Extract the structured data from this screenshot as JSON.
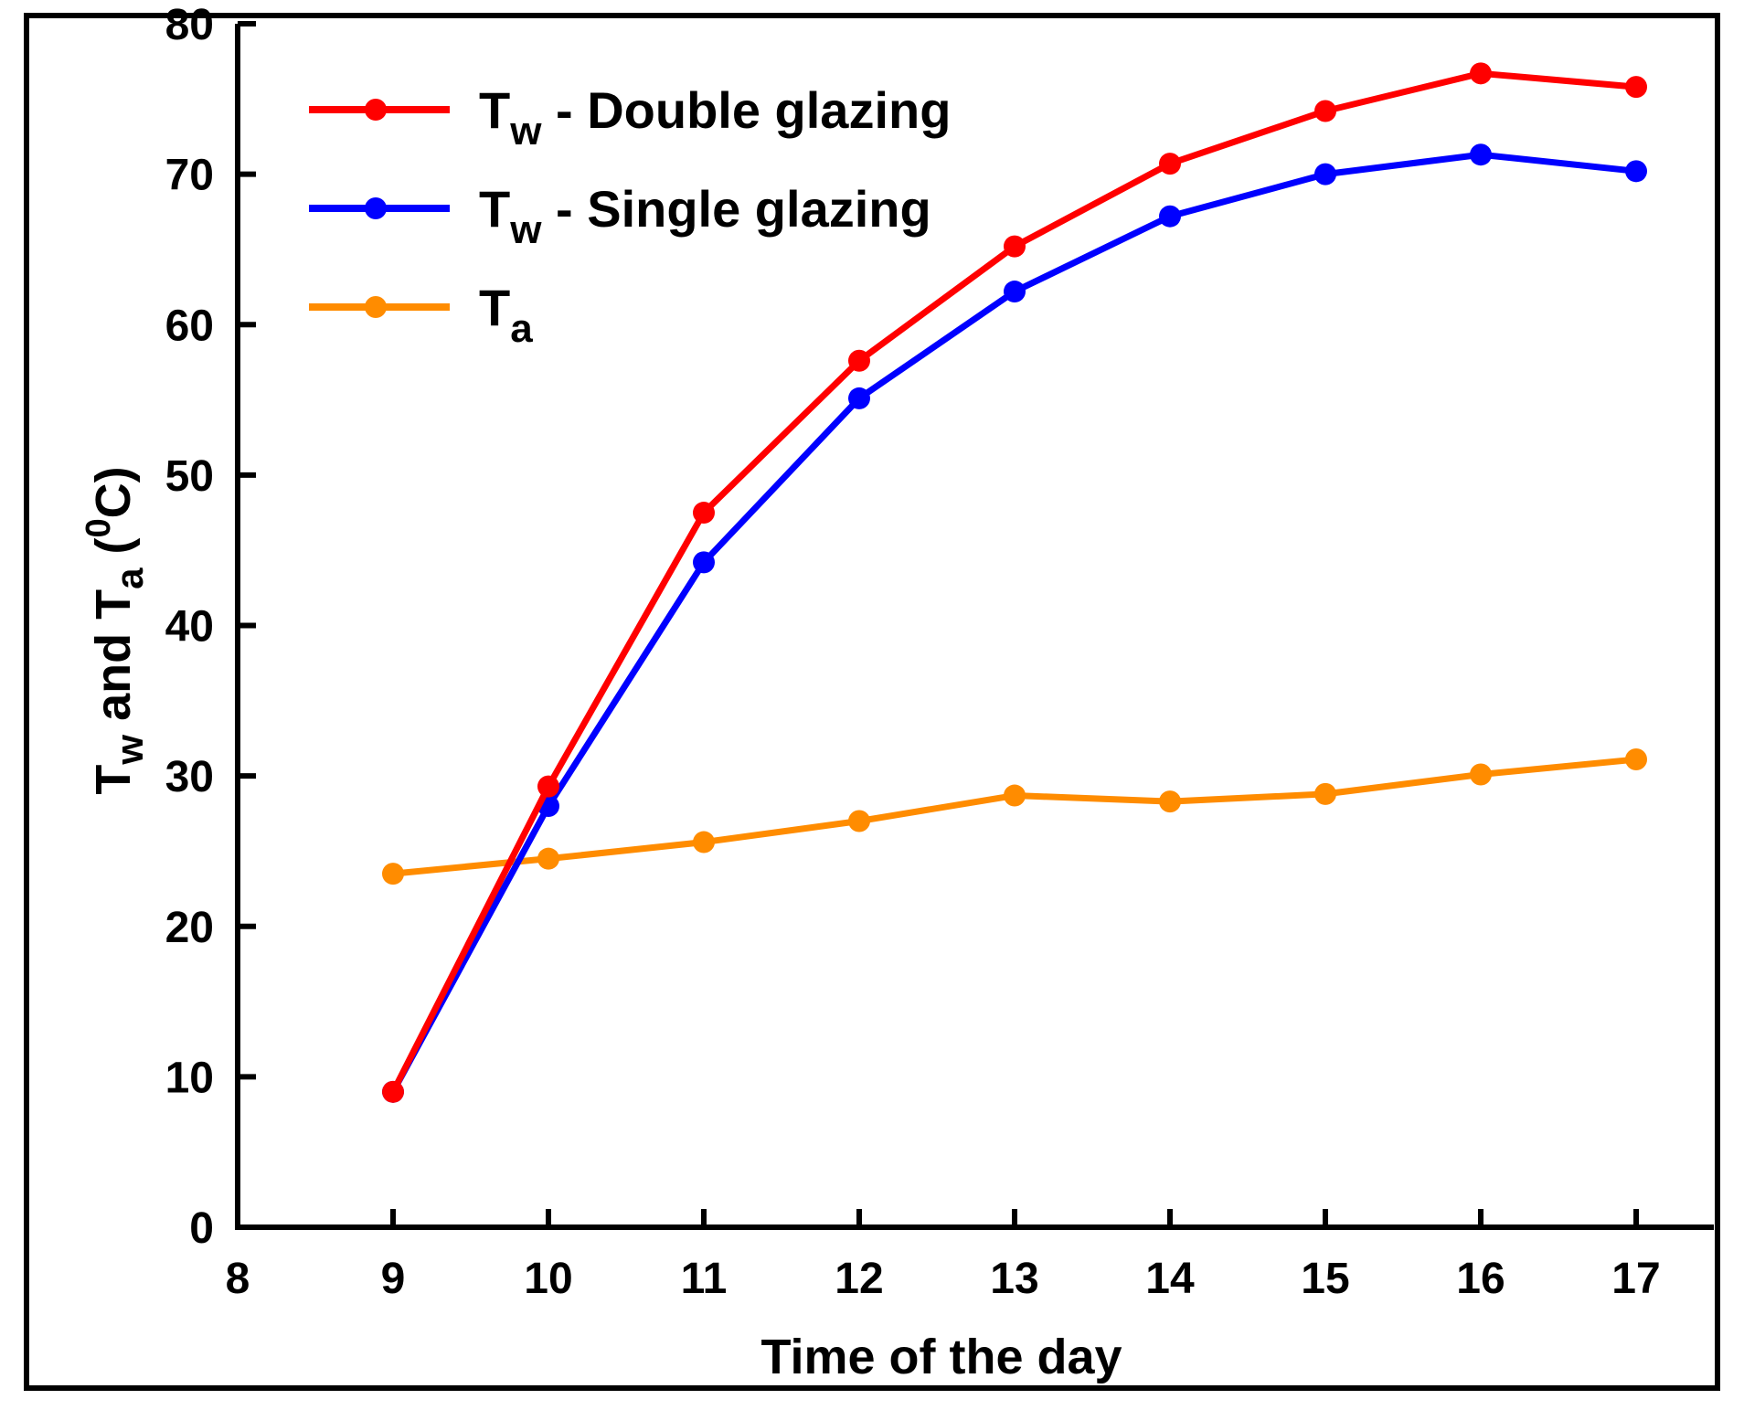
{
  "chart_data": {
    "type": "line",
    "title": "",
    "xlabel": "Time of the day",
    "ylabel": {
      "parts": [
        "T",
        "w",
        " and T",
        "a",
        " (",
        "0",
        "C)"
      ]
    },
    "xlim": [
      8,
      17.5
    ],
    "ylim": [
      0,
      80
    ],
    "xticks": [
      "8",
      "9",
      "10",
      "11",
      "12",
      "13",
      "14",
      "15",
      "16",
      "17"
    ],
    "yticks": [
      "0",
      "10",
      "20",
      "30",
      "40",
      "50",
      "60",
      "70",
      "80"
    ],
    "x": [
      9,
      10,
      11,
      12,
      13,
      14,
      15,
      16,
      17
    ],
    "grid": false,
    "legend_position": "top-left",
    "series": [
      {
        "name": "Tw - Double glazing",
        "legend": {
          "main": "T",
          "sub": "w",
          "rest": " - Double glazing"
        },
        "color": "#ff0000",
        "values": [
          9,
          29.3,
          47.5,
          57.6,
          65.2,
          70.7,
          74.2,
          76.7,
          75.8
        ]
      },
      {
        "name": "Tw - Single glazing",
        "legend": {
          "main": "T",
          "sub": "w",
          "rest": " - Single glazing"
        },
        "color": "#0000ff",
        "values": [
          9,
          28,
          44.2,
          55.1,
          62.2,
          67.2,
          70,
          71.3,
          70.2
        ]
      },
      {
        "name": "Ta",
        "legend": {
          "main": "T",
          "sub": "a",
          "rest": ""
        },
        "color": "#ff8c00",
        "values": [
          23.5,
          24.5,
          25.6,
          27,
          28.7,
          28.3,
          28.8,
          30.1,
          31.1
        ]
      }
    ]
  }
}
